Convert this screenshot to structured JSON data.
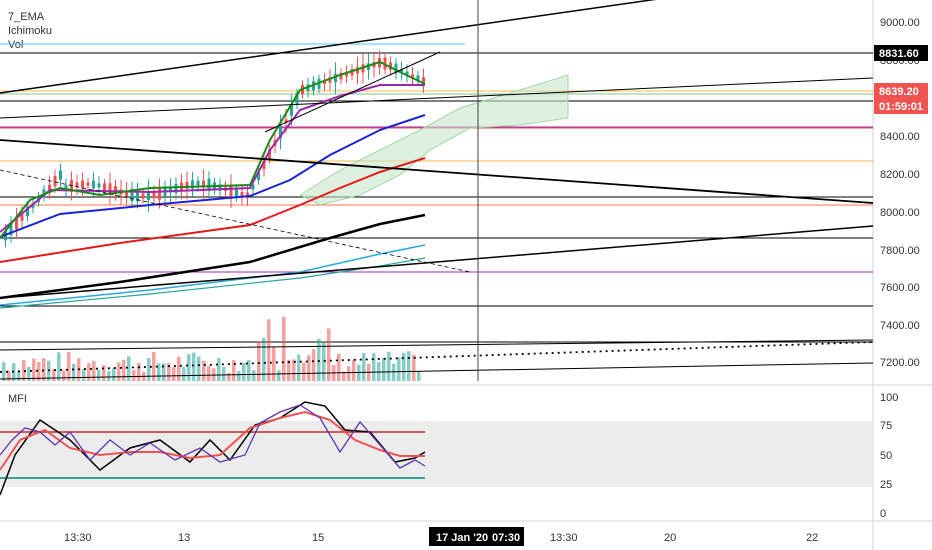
{
  "indicators": {
    "ema": "7_EMA",
    "ichimoku": "Ichimoku",
    "volume": "Vol",
    "mfi": "MFI"
  },
  "chart_data": {
    "type": "line",
    "price_axis": {
      "ticks": [
        "9000.00",
        "8800.00",
        "8600.00",
        "8400.00",
        "8200.00",
        "8000.00",
        "7800.00",
        "7600.00",
        "7400.00",
        "7200.00"
      ],
      "tagged_levels": [
        {
          "value": "8831.60",
          "color": "#000000"
        },
        {
          "value": "8639.20",
          "color": "#ef5350"
        },
        {
          "value": "01:59:01",
          "color": "#ef5350"
        }
      ]
    },
    "mfi_axis": {
      "ticks": [
        "100",
        "75",
        "50",
        "25",
        "0"
      ]
    },
    "time_axis": {
      "ticks": [
        "13:30",
        "13",
        "15",
        "13:30",
        "20",
        "22"
      ],
      "crosshair_label": "17 Jan '20",
      "crosshair_time": "07:30"
    },
    "colors": {
      "up": "#26a69a",
      "down": "#ef5350",
      "ema_fast": "#1b8a1b",
      "ema_purple": "#9c27b0",
      "ema_blue": "#1a23d6",
      "ema_red": "#e31a1c",
      "ema_black": "#000000",
      "ema_cyan": "#29a9e0",
      "ema_teal": "#26a69a",
      "cloud": "#c8e6c9",
      "mfi_band": "#ececec"
    }
  }
}
